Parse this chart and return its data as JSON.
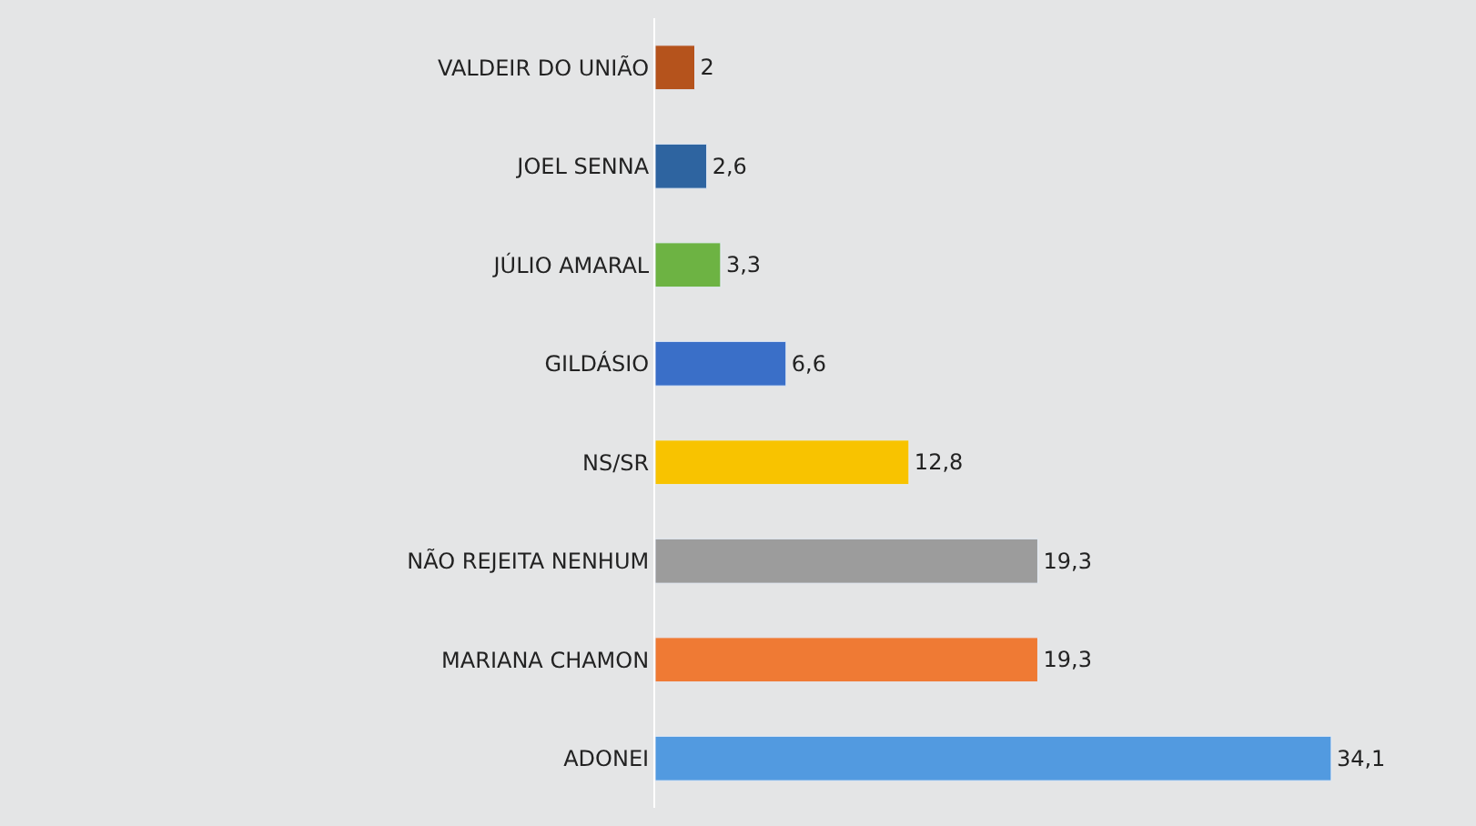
{
  "chart_data": {
    "type": "bar",
    "orientation": "horizontal",
    "categories": [
      "VALDEIR DO UNIÃO",
      "JOEL SENNA",
      "JÚLIO AMARAL",
      "GILDÁSIO",
      "NS/SR",
      "NÃO REJEITA NENHUM",
      "MARIANA CHAMON",
      "ADONEI"
    ],
    "values": [
      2,
      2.6,
      3.3,
      6.6,
      12.8,
      19.3,
      19.3,
      34.1
    ],
    "value_labels": [
      "2",
      "2,6",
      "3,3",
      "6,6",
      "12,8",
      "19,3",
      "19,3",
      "34,1"
    ],
    "colors": [
      "#b5531c",
      "#2e64a0",
      "#6db343",
      "#3a6fc8",
      "#f8c300",
      "#9c9c9c",
      "#ef7a34",
      "#529ae0"
    ]
  }
}
